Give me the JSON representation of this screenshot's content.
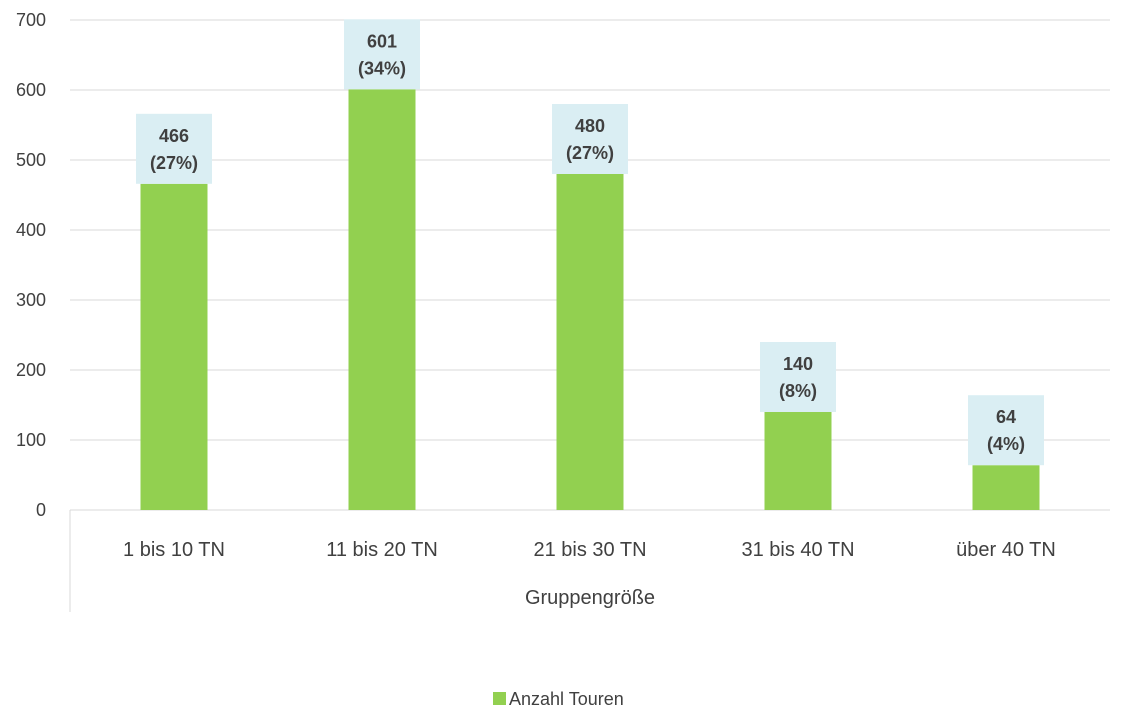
{
  "chart_data": {
    "type": "bar",
    "title": "",
    "xlabel": "Gruppengröße",
    "ylabel": "",
    "categories": [
      "1 bis 10 TN",
      "11 bis 20 TN",
      "21 bis 30 TN",
      "31 bis 40 TN",
      "über 40 TN"
    ],
    "series": [
      {
        "name": "Anzahl Touren",
        "values": [
          466,
          601,
          480,
          140,
          64
        ],
        "color": "#92d050"
      }
    ],
    "data_labels": [
      [
        "466",
        "(27%)"
      ],
      [
        "601",
        "(34%)"
      ],
      [
        "480",
        "(27%)"
      ],
      [
        "140",
        "(8%)"
      ],
      [
        "64",
        "(4%)"
      ]
    ],
    "ylim": [
      0,
      700
    ],
    "yticks": [
      0,
      100,
      200,
      300,
      400,
      500,
      600,
      700
    ],
    "grid": true,
    "legend_position": "bottom",
    "colors": {
      "bar": "#92d050",
      "label_box": "#daeef3",
      "gridline": "#d9d9d9",
      "text": "#404040",
      "label_text": "#404040"
    }
  }
}
